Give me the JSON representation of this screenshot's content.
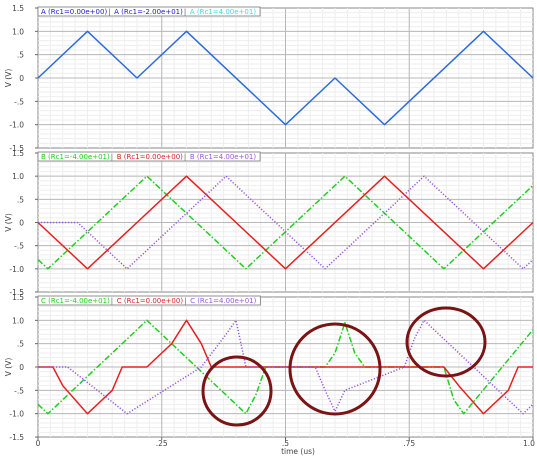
{
  "chart_data": [
    {
      "type": "line",
      "legend": [
        "A (Rc1=0.00e+00)",
        "A (Rc1=-2.00e+01)",
        "A (Rc1=4.00e+01)"
      ],
      "legend_colors": [
        "#1a1ad0",
        "#1a1ad0",
        "#40d8e0"
      ],
      "ylabel": "V (V)",
      "ylim": [
        -1.5,
        1.5
      ],
      "yticks": [
        "1.5",
        "1.0",
        ".5",
        "0",
        "-.5",
        "-1.0",
        "-1.5"
      ],
      "xlim": [
        0,
        1
      ],
      "grid": true,
      "series": [
        {
          "name": "A (Rc1=0.00e+00)",
          "color": "#2b6be0",
          "x": [
            0,
            0.1,
            0.2,
            0.3,
            0.5,
            0.6,
            0.7,
            0.9,
            1.0
          ],
          "y": [
            0,
            1,
            0,
            1,
            -1,
            0,
            -1,
            1,
            0
          ]
        }
      ]
    },
    {
      "type": "line",
      "legend": [
        "B (Rc1=-4.00e+01)",
        "B (Rc1=0.00e+00)",
        "B (Rc1=4.00e+01)"
      ],
      "legend_colors": [
        "#22cc22",
        "#dd2222",
        "#9955dd"
      ],
      "ylabel": "V (V)",
      "ylim": [
        -1.5,
        1.5
      ],
      "yticks": [
        "1.5",
        "1.0",
        ".5",
        "0",
        "-.5",
        "-1.0",
        "-1.5"
      ],
      "xlim": [
        0,
        1
      ],
      "grid": true,
      "series": [
        {
          "name": "B (Rc1=-4.00e+01)",
          "color": "#22cc22",
          "style": "dashdot",
          "x": [
            0,
            0.02,
            0.22,
            0.42,
            0.62,
            0.82,
            1.0
          ],
          "y": [
            -0.8,
            -1,
            1,
            -1,
            1,
            -1,
            0.8
          ]
        },
        {
          "name": "B (Rc1=0.00e+00)",
          "color": "#e82020",
          "style": "solid",
          "x": [
            0,
            0.1,
            0.3,
            0.5,
            0.7,
            0.9,
            1.0
          ],
          "y": [
            0,
            -1,
            1,
            -1,
            1,
            -1,
            0
          ]
        },
        {
          "name": "B (Rc1=4.00e+01)",
          "color": "#9955dd",
          "style": "dotted",
          "x": [
            0,
            0.03,
            0.08,
            0.18,
            0.38,
            0.58,
            0.78,
            0.98,
            1.0
          ],
          "y": [
            0,
            0,
            0,
            -1,
            1,
            -1,
            1,
            -1,
            -0.8
          ]
        }
      ]
    },
    {
      "type": "line",
      "legend": [
        "C (Rc1=-4.00e+01)",
        "C (Rc1=0.00e+00)",
        "C (Rc1=4.00e+01)"
      ],
      "legend_colors": [
        "#22cc22",
        "#dd2222",
        "#9955dd"
      ],
      "ylabel": "V (V)",
      "xlabel": "time (us)",
      "ylim": [
        -1.5,
        1.5
      ],
      "yticks": [
        "1.5",
        "1.0",
        ".5",
        "0",
        "-.5",
        "-1.0",
        "-1.5"
      ],
      "xlim": [
        0,
        1
      ],
      "xticks": [
        "0",
        ".25",
        ".5",
        ".75",
        "1.0"
      ],
      "grid": true,
      "series": [
        {
          "name": "C (Rc1=-4.00e+01)",
          "color": "#22cc22",
          "style": "dashdot",
          "x": [
            0,
            0.02,
            0.22,
            0.42,
            0.44,
            0.46,
            0.58,
            0.6,
            0.62,
            0.64,
            0.66,
            0.78,
            0.82,
            0.84,
            0.86,
            1.0
          ],
          "y": [
            -0.8,
            -1,
            1,
            -1,
            -0.6,
            0,
            0,
            0.3,
            0.95,
            0.3,
            0,
            0,
            0,
            -0.7,
            -1,
            0.8
          ]
        },
        {
          "name": "C (Rc1=0.00e+00)",
          "color": "#e82020",
          "style": "solid",
          "x": [
            0,
            0.03,
            0.05,
            0.1,
            0.15,
            0.17,
            0.22,
            0.27,
            0.3,
            0.33,
            0.35,
            0.4,
            0.82,
            0.85,
            0.9,
            0.95,
            0.97,
            1.0
          ],
          "y": [
            0,
            0,
            -0.4,
            -1,
            -0.5,
            0,
            0,
            0.5,
            1,
            0.5,
            0,
            0,
            0,
            -0.4,
            -1,
            -0.5,
            0,
            0
          ]
        },
        {
          "name": "C (Rc1=4.00e+01)",
          "color": "#9955dd",
          "style": "dotted",
          "x": [
            0,
            0.06,
            0.18,
            0.33,
            0.38,
            0.4,
            0.42,
            0.56,
            0.58,
            0.6,
            0.62,
            0.74,
            0.76,
            0.78,
            0.98,
            1.0
          ],
          "y": [
            0,
            0,
            -1,
            0,
            0.7,
            1,
            0,
            0,
            -0.5,
            -0.95,
            -0.5,
            0,
            0.6,
            1,
            -1,
            -0.8
          ]
        }
      ]
    }
  ]
}
